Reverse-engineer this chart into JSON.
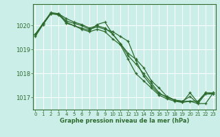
{
  "background_color": "#cceee8",
  "line_color": "#2d6a2d",
  "grid_color": "#b0ddd8",
  "ylabel_ticks": [
    1017,
    1018,
    1019,
    1020
  ],
  "xlabel_ticks": [
    0,
    1,
    2,
    3,
    4,
    5,
    6,
    7,
    8,
    9,
    10,
    11,
    12,
    13,
    14,
    15,
    16,
    17,
    18,
    19,
    20,
    21,
    22,
    23
  ],
  "xlabel_label": "Graphe pression niveau de la mer (hPa)",
  "ylim": [
    1016.5,
    1020.9
  ],
  "xlim": [
    -0.3,
    23.3
  ],
  "series": [
    [
      1019.65,
      1020.05,
      1020.5,
      1020.45,
      1020.15,
      1020.0,
      1019.85,
      1019.75,
      1019.85,
      1019.75,
      1019.45,
      1019.2,
      1018.6,
      1018.0,
      1017.7,
      1017.4,
      1017.1,
      1016.95,
      1016.85,
      1016.8,
      1016.85,
      1016.75,
      1017.15,
      1017.15
    ],
    [
      1019.65,
      1020.1,
      1020.55,
      1020.5,
      1020.3,
      1020.15,
      1020.05,
      1019.9,
      1020.0,
      1019.9,
      1019.65,
      1019.25,
      1018.85,
      1018.6,
      1018.25,
      1017.7,
      1017.4,
      1017.05,
      1016.9,
      1016.85,
      1017.05,
      1016.75,
      1016.75,
      1017.2
    ],
    [
      1019.6,
      1020.1,
      1020.5,
      1020.5,
      1020.2,
      1020.1,
      1020.0,
      1019.85,
      1019.95,
      1019.85,
      1019.75,
      1019.55,
      1019.35,
      1018.55,
      1017.9,
      1017.5,
      1017.15,
      1017.05,
      1016.9,
      1016.85,
      1016.85,
      1016.85,
      1017.2,
      1017.15
    ],
    [
      1019.55,
      1020.05,
      1020.5,
      1020.5,
      1020.1,
      1020.0,
      1019.9,
      1019.8,
      1020.05,
      1020.15,
      1019.65,
      1019.25,
      1018.75,
      1018.4,
      1018.0,
      1017.6,
      1017.2,
      1017.0,
      1016.9,
      1016.8,
      1017.2,
      1016.8,
      1017.2,
      1017.2
    ]
  ]
}
